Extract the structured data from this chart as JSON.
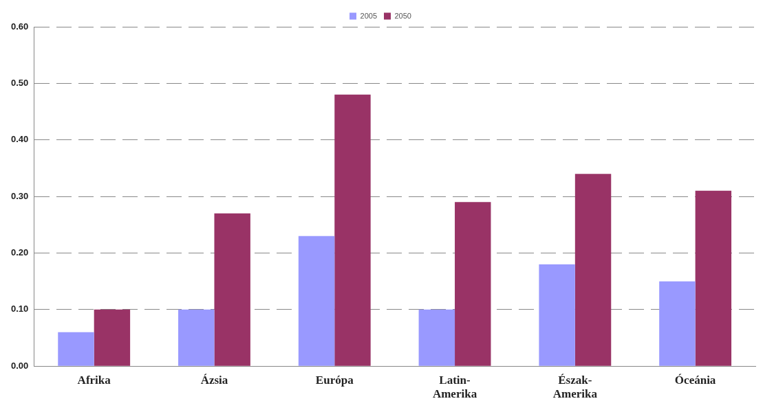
{
  "chart_data": {
    "type": "bar",
    "categories": [
      "Afrika",
      "Ázsia",
      "Európa",
      "Latin-Amerika",
      "Észak-Amerika",
      "Óceánia"
    ],
    "series": [
      {
        "name": "2005",
        "color": "#9999ff",
        "values": [
          0.06,
          0.1,
          0.23,
          0.1,
          0.18,
          0.15
        ]
      },
      {
        "name": "2050",
        "color": "#993366",
        "values": [
          0.1,
          0.27,
          0.48,
          0.29,
          0.34,
          0.31
        ]
      }
    ],
    "ylim": [
      0,
      0.6
    ],
    "yticks": [
      {
        "value": 0,
        "label": "0.00"
      },
      {
        "value": 0.1,
        "label": "0.10"
      },
      {
        "value": 0.2,
        "label": "0.20"
      },
      {
        "value": 0.3,
        "label": "0.30"
      },
      {
        "value": 0.4,
        "label": "0.40"
      },
      {
        "value": 0.5,
        "label": "0.50"
      },
      {
        "value": 0.6,
        "label": "0.60"
      }
    ],
    "grid": "y",
    "line_style": "dashed",
    "legend": "top"
  }
}
